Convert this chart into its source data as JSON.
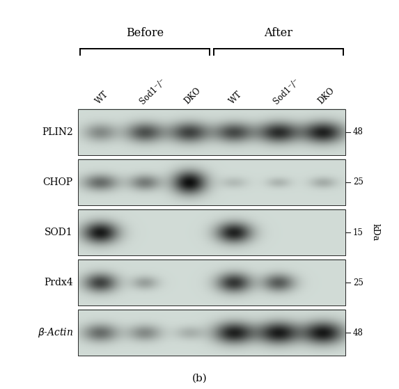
{
  "title": "(b)",
  "before_label": "Before",
  "after_label": "After",
  "col_labels": [
    "WT",
    "Sod1⁻/⁻",
    "DKO",
    "WT",
    "Sod1⁻/⁻",
    "DKO"
  ],
  "row_labels": [
    "PLIN2",
    "CHOP",
    "SOD1",
    "Prdx4",
    "β-Actin"
  ],
  "kda_labels": [
    "48",
    "25",
    "15",
    "25",
    "48"
  ],
  "kda_label": "kDa",
  "background_color": "#ffffff",
  "blot_bg_r": 0.82,
  "blot_bg_g": 0.86,
  "blot_bg_b": 0.84,
  "bands": {
    "PLIN2": [
      {
        "col": 0,
        "intensity": 0.38,
        "wx": 1.6,
        "wy": 0.55
      },
      {
        "col": 1,
        "intensity": 0.65,
        "wx": 1.8,
        "wy": 0.6
      },
      {
        "col": 2,
        "intensity": 0.72,
        "wx": 1.9,
        "wy": 0.62
      },
      {
        "col": 3,
        "intensity": 0.68,
        "wx": 1.85,
        "wy": 0.6
      },
      {
        "col": 4,
        "intensity": 0.82,
        "wx": 1.95,
        "wy": 0.63
      },
      {
        "col": 5,
        "intensity": 0.88,
        "wx": 1.95,
        "wy": 0.64
      }
    ],
    "CHOP": [
      {
        "col": 0,
        "intensity": 0.52,
        "wx": 1.7,
        "wy": 0.5
      },
      {
        "col": 1,
        "intensity": 0.45,
        "wx": 1.5,
        "wy": 0.48
      },
      {
        "col": 2,
        "intensity": 0.97,
        "wx": 1.6,
        "wy": 0.7
      },
      {
        "col": 3,
        "intensity": 0.15,
        "wx": 1.3,
        "wy": 0.35
      },
      {
        "col": 4,
        "intensity": 0.18,
        "wx": 1.2,
        "wy": 0.32
      },
      {
        "col": 5,
        "intensity": 0.22,
        "wx": 1.3,
        "wy": 0.35
      }
    ],
    "SOD1": [
      {
        "col": 0,
        "intensity": 0.92,
        "wx": 1.7,
        "wy": 0.65
      },
      {
        "col": 1,
        "intensity": 0.0,
        "wx": 0.0,
        "wy": 0.0
      },
      {
        "col": 2,
        "intensity": 0.0,
        "wx": 0.0,
        "wy": 0.0
      },
      {
        "col": 3,
        "intensity": 0.88,
        "wx": 1.7,
        "wy": 0.63
      },
      {
        "col": 4,
        "intensity": 0.0,
        "wx": 0.0,
        "wy": 0.0
      },
      {
        "col": 5,
        "intensity": 0.0,
        "wx": 0.0,
        "wy": 0.0
      }
    ],
    "Prdx4": [
      {
        "col": 0,
        "intensity": 0.72,
        "wx": 1.6,
        "wy": 0.58
      },
      {
        "col": 1,
        "intensity": 0.28,
        "wx": 1.3,
        "wy": 0.42
      },
      {
        "col": 2,
        "intensity": 0.0,
        "wx": 0.0,
        "wy": 0.0
      },
      {
        "col": 3,
        "intensity": 0.78,
        "wx": 1.65,
        "wy": 0.6
      },
      {
        "col": 4,
        "intensity": 0.6,
        "wx": 1.55,
        "wy": 0.55
      },
      {
        "col": 5,
        "intensity": 0.0,
        "wx": 0.0,
        "wy": 0.0
      }
    ],
    "beta-Actin": [
      {
        "col": 0,
        "intensity": 0.52,
        "wx": 1.7,
        "wy": 0.55
      },
      {
        "col": 1,
        "intensity": 0.38,
        "wx": 1.6,
        "wy": 0.5
      },
      {
        "col": 2,
        "intensity": 0.2,
        "wx": 1.4,
        "wy": 0.42
      },
      {
        "col": 3,
        "intensity": 0.88,
        "wx": 1.9,
        "wy": 0.65
      },
      {
        "col": 4,
        "intensity": 0.9,
        "wx": 1.95,
        "wy": 0.67
      },
      {
        "col": 5,
        "intensity": 0.92,
        "wx": 1.95,
        "wy": 0.68
      }
    ]
  }
}
